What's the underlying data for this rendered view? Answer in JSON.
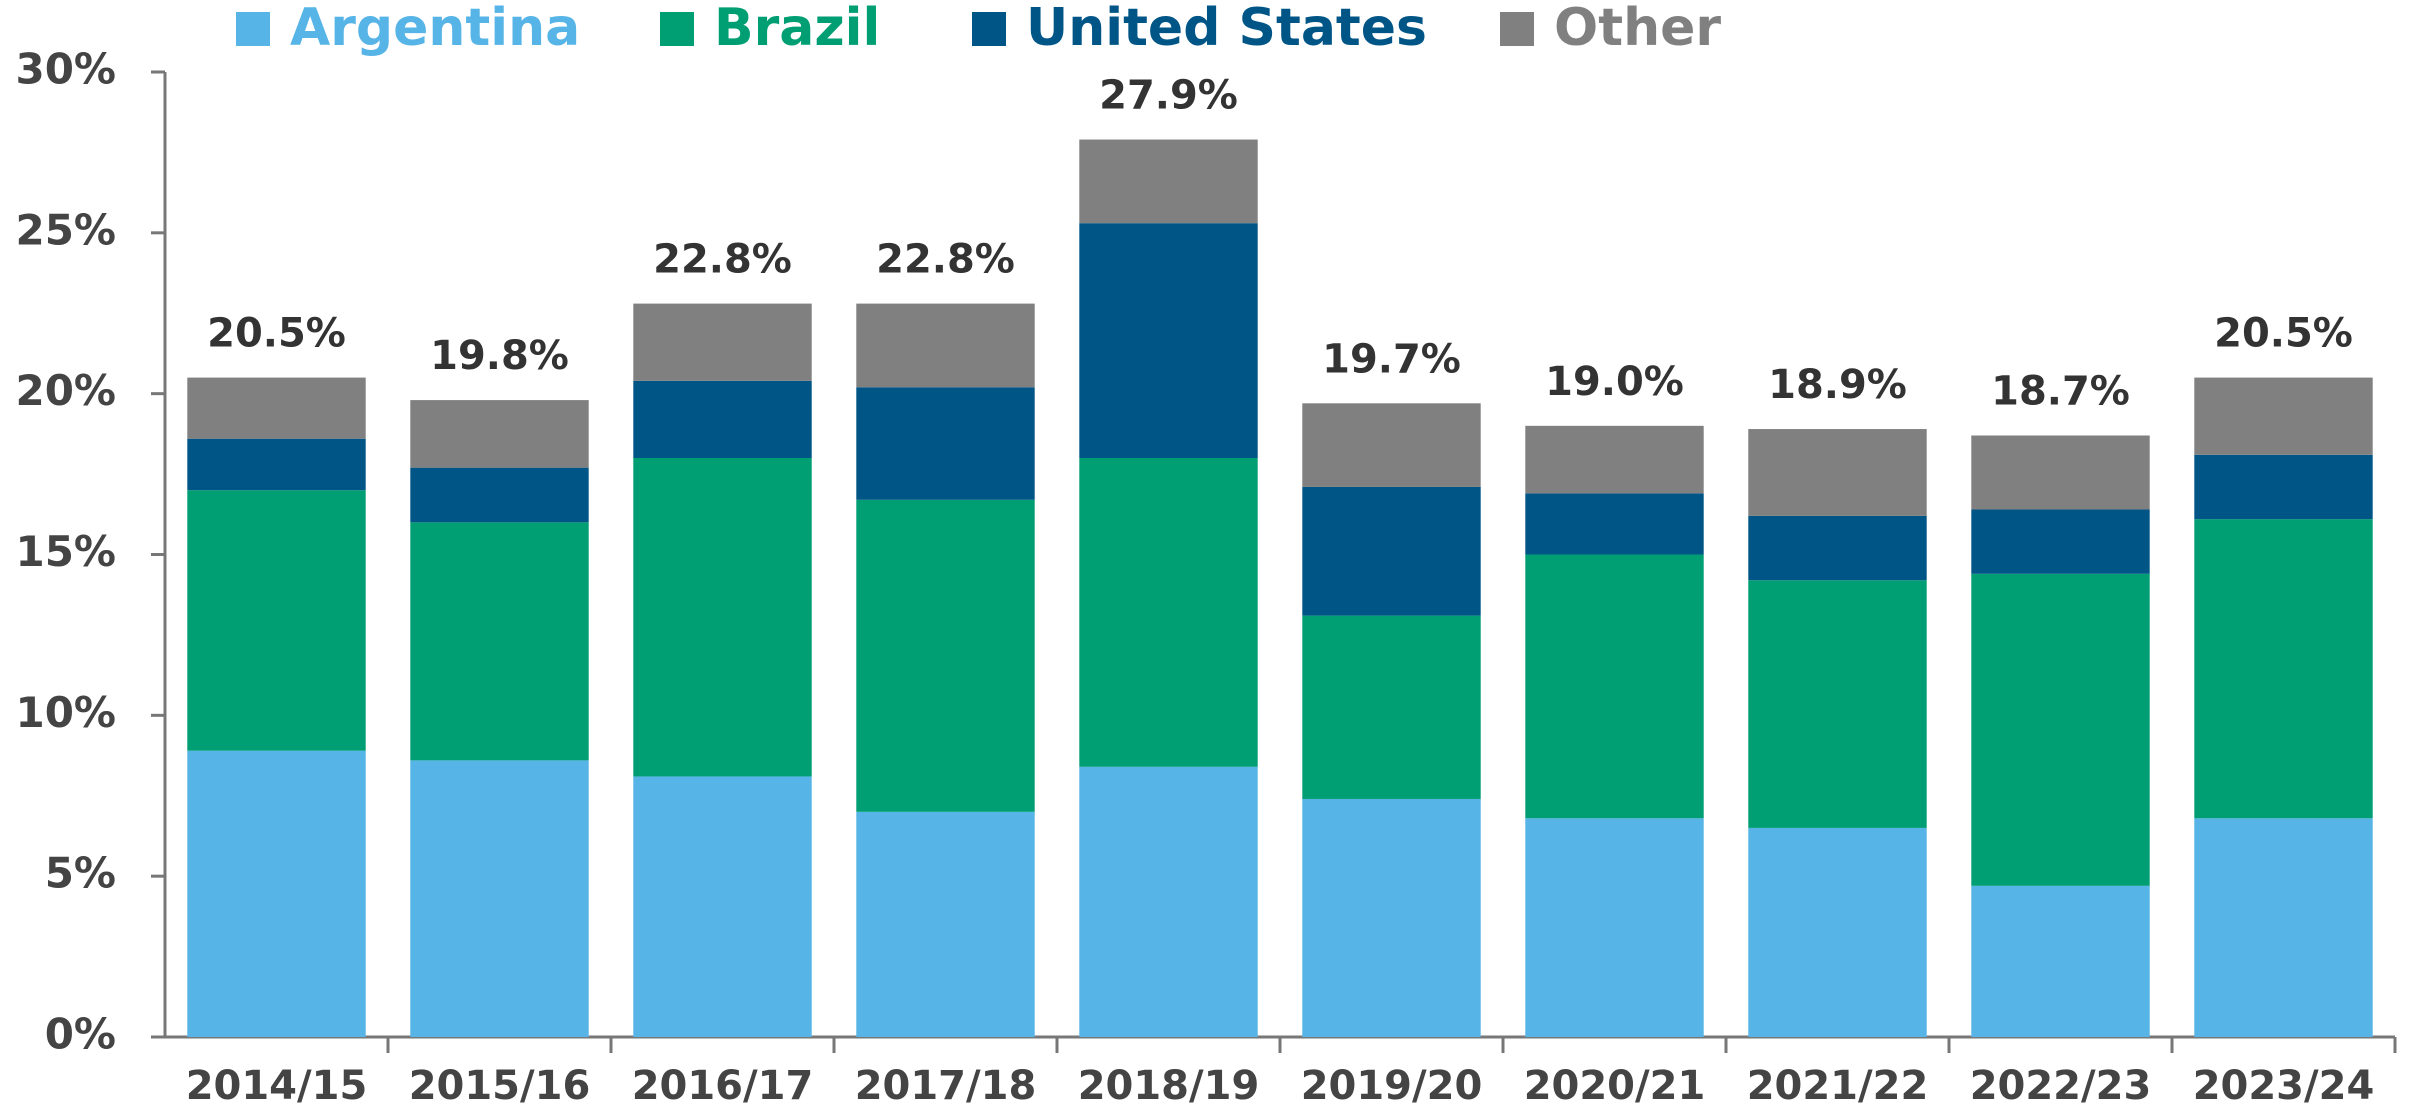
{
  "chart_data": {
    "type": "stacked_bar",
    "categories": [
      "2014/15",
      "2015/16",
      "2016/17",
      "2017/18",
      "2018/19",
      "2019/20",
      "2020/21",
      "2021/22",
      "2022/23",
      "2023/24"
    ],
    "series": [
      {
        "name": "Argentina",
        "color": "#56b4e7",
        "values": [
          8.9,
          8.6,
          8.1,
          7.0,
          8.4,
          7.4,
          6.8,
          6.5,
          4.7,
          6.8
        ]
      },
      {
        "name": "Brazil",
        "color": "#009e73",
        "values": [
          8.1,
          7.4,
          9.9,
          9.7,
          9.6,
          5.7,
          8.2,
          7.7,
          9.7,
          9.3
        ]
      },
      {
        "name": "United States",
        "color": "#005587",
        "values": [
          1.6,
          1.7,
          2.4,
          3.5,
          7.3,
          4.0,
          1.9,
          2.0,
          2.0,
          2.0
        ]
      },
      {
        "name": "Other",
        "color": "#808080",
        "values": [
          1.9,
          2.1,
          2.4,
          2.6,
          2.6,
          2.6,
          2.1,
          2.7,
          2.3,
          2.4
        ]
      }
    ],
    "totals": {
      "values": [
        20.5,
        19.8,
        22.8,
        22.8,
        27.9,
        19.7,
        19.0,
        18.9,
        18.7,
        20.5
      ],
      "value_labels": [
        "20.5%",
        "19.8%",
        "22.8%",
        "22.8%",
        "27.9%",
        "19.7%",
        "19.0%",
        "18.9%",
        "18.7%",
        "20.5%"
      ]
    },
    "ylim": [
      0,
      30
    ],
    "yticks": [
      {
        "value": 0,
        "label": "0%"
      },
      {
        "value": 5,
        "label": "5%"
      },
      {
        "value": 10,
        "label": "10%"
      },
      {
        "value": 15,
        "label": "15%"
      },
      {
        "value": 20,
        "label": "20%"
      },
      {
        "value": 25,
        "label": "25%"
      },
      {
        "value": 30,
        "label": "30%"
      }
    ],
    "legend": "top"
  }
}
